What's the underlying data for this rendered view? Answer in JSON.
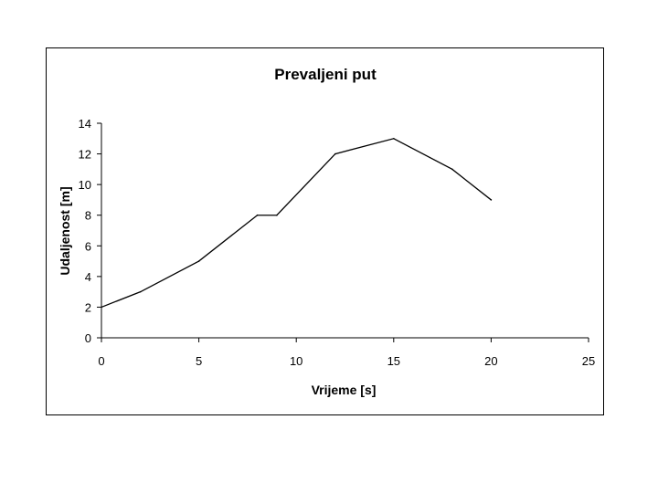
{
  "chart_data": {
    "type": "line",
    "title": "Prevaljeni put",
    "xlabel": "Vrijeme [s]",
    "ylabel": "Udaljenost [m]",
    "xlim": [
      0,
      25
    ],
    "ylim": [
      0,
      14
    ],
    "x_ticks": [
      "0",
      "5",
      "10",
      "15",
      "20",
      "25"
    ],
    "y_ticks": [
      "0",
      "2",
      "4",
      "6",
      "8",
      "10",
      "12",
      "14"
    ],
    "grid": false,
    "legend": "none",
    "line_color": "#000000",
    "series": [
      {
        "x": [
          0,
          2,
          5,
          8,
          9,
          12,
          15,
          18,
          20
        ],
        "y": [
          2,
          3,
          5,
          8,
          8,
          12,
          13,
          11,
          9
        ]
      }
    ]
  }
}
